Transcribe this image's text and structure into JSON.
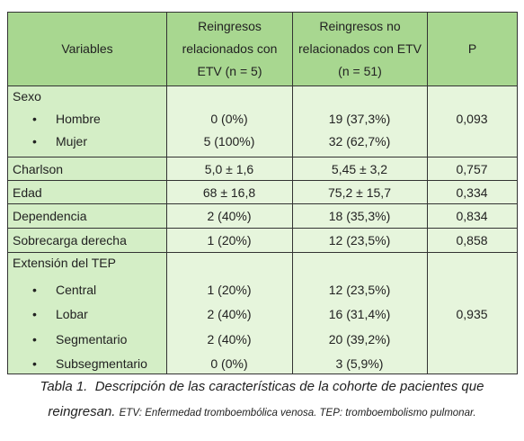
{
  "table": {
    "header": [
      "Variables",
      "Reingresos relacionados con ETV (n = 5)",
      "Reingresos no relacionados con ETV (n = 51)",
      "P"
    ],
    "rows": [
      {
        "label": "Sexo",
        "items": [
          {
            "label": "Hombre",
            "values": [
              "0 (0%)",
              "19 (37,3%)"
            ]
          },
          {
            "label": "Mujer",
            "values": [
              "5 (100%)",
              "32 (62,7%)"
            ]
          }
        ],
        "p": "0,093"
      },
      {
        "label": "Charlson",
        "values": [
          "5,0 ± 1,6",
          "5,45 ± 3,2"
        ],
        "p": "0,757"
      },
      {
        "label": "Edad",
        "values": [
          "68 ± 16,8",
          "75,2 ± 15,7"
        ],
        "p": "0,334"
      },
      {
        "label": "Dependencia",
        "values": [
          "2 (40%)",
          "18 (35,3%)"
        ],
        "p": "0,834"
      },
      {
        "label": "Sobrecarga derecha",
        "values": [
          "1 (20%)",
          "12 (23,5%)"
        ],
        "p": "0,858"
      },
      {
        "label": "Extensión del TEP",
        "items": [
          {
            "label": "Central",
            "values": [
              "1 (20%)",
              "12 (23,5%)"
            ]
          },
          {
            "label": "Lobar",
            "values": [
              "2 (40%)",
              "16 (31,4%)"
            ]
          },
          {
            "label": "Segmentario",
            "values": [
              "2 (40%)",
              "20 (39,2%)"
            ]
          },
          {
            "label": "Subsegmentario",
            "values": [
              "0 (0%)",
              "3 (5,9%)"
            ]
          }
        ],
        "p": "0,935"
      }
    ]
  },
  "caption": {
    "title": "Tabla 1.",
    "text": "Descripción de las características de la cohorte de pacientes que reingresan.",
    "note": "ETV: Enfermedad tromboembólica venosa. TEP: tromboembolismo pulmonar."
  }
}
